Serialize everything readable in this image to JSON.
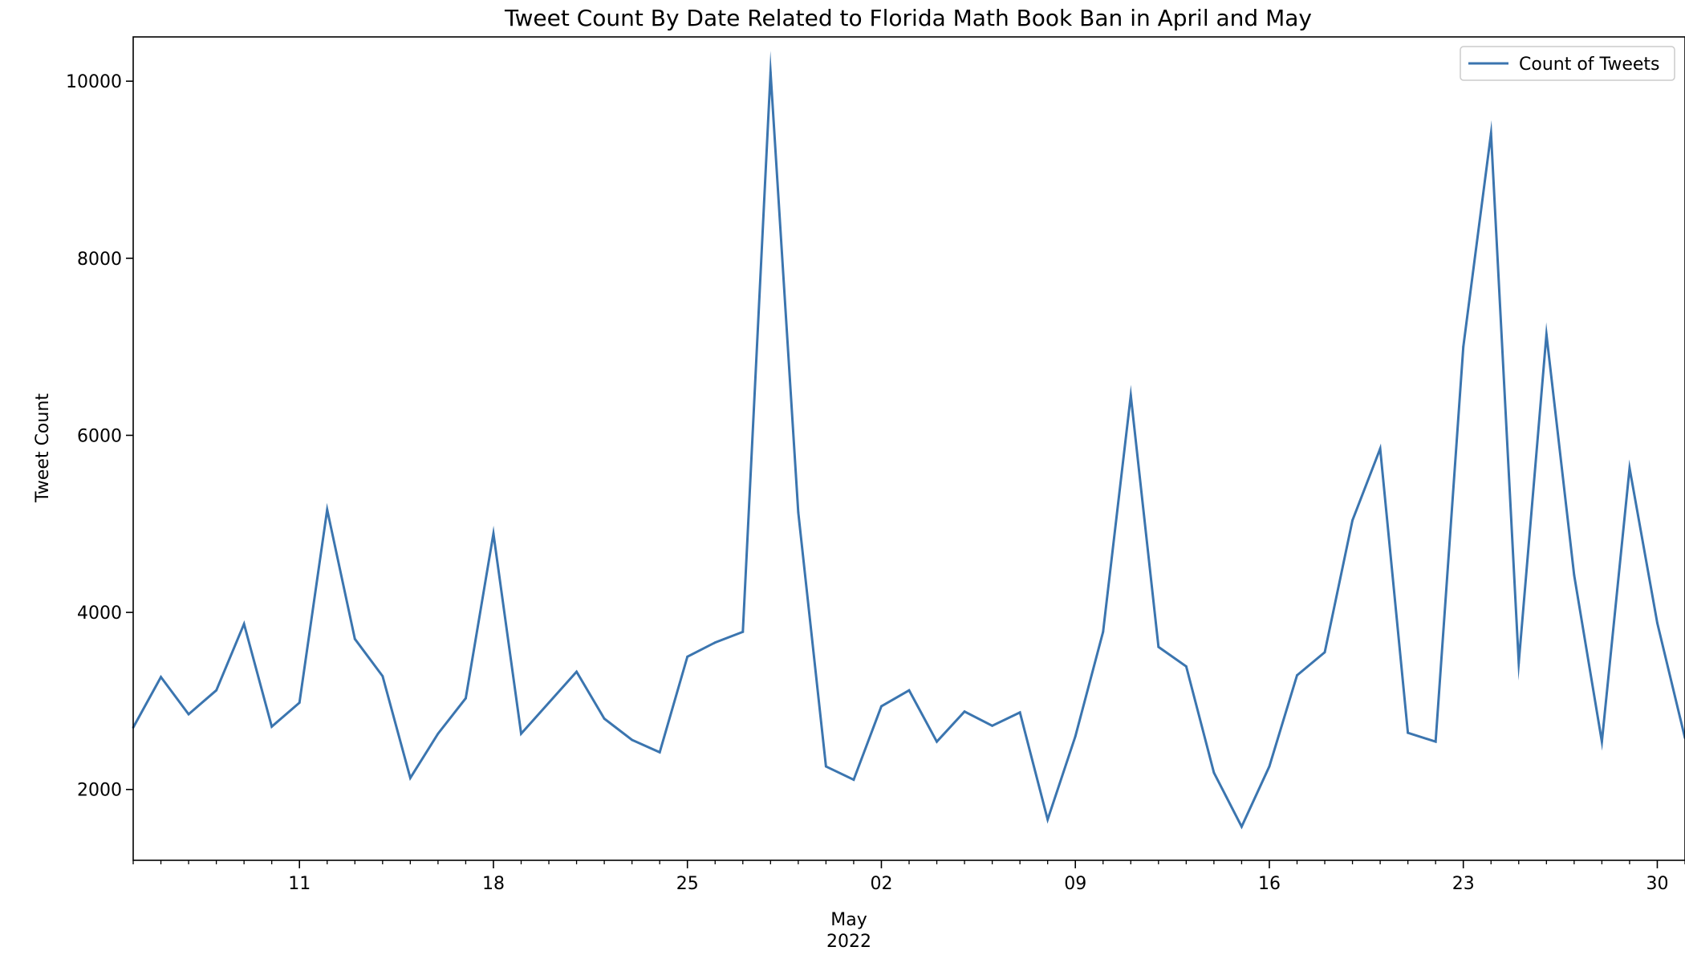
{
  "chart_data": {
    "type": "line",
    "title": "Tweet Count By Date Related to Florida Math Book Ban in April and May",
    "xlabel": "",
    "ylabel": "Tweet Count",
    "ylim": [
      1200,
      10500
    ],
    "grid": false,
    "legend_position": "top-right",
    "x_start": "2022-04-05",
    "x_end": "2022-05-31",
    "y_ticks": [
      2000,
      4000,
      6000,
      8000,
      10000
    ],
    "x_ticks": [
      {
        "date": "2022-04-11",
        "label": "11"
      },
      {
        "date": "2022-04-18",
        "label": "18"
      },
      {
        "date": "2022-04-25",
        "label": "25"
      },
      {
        "date": "2022-05-02",
        "label": "02"
      },
      {
        "date": "2022-05-09",
        "label": "09"
      },
      {
        "date": "2022-05-16",
        "label": "16"
      },
      {
        "date": "2022-05-23",
        "label": "23"
      },
      {
        "date": "2022-05-30",
        "label": "30"
      }
    ],
    "month_label": "May",
    "year_label": "2022",
    "series": [
      {
        "name": "Count of Tweets",
        "color": "#3b75af",
        "x": [
          "2022-04-05",
          "2022-04-06",
          "2022-04-07",
          "2022-04-08",
          "2022-04-09",
          "2022-04-10",
          "2022-04-11",
          "2022-04-12",
          "2022-04-13",
          "2022-04-14",
          "2022-04-15",
          "2022-04-16",
          "2022-04-17",
          "2022-04-18",
          "2022-04-19",
          "2022-04-20",
          "2022-04-21",
          "2022-04-22",
          "2022-04-23",
          "2022-04-24",
          "2022-04-25",
          "2022-04-26",
          "2022-04-27",
          "2022-04-28",
          "2022-04-29",
          "2022-04-30",
          "2022-05-01",
          "2022-05-02",
          "2022-05-03",
          "2022-05-04",
          "2022-05-05",
          "2022-05-06",
          "2022-05-07",
          "2022-05-08",
          "2022-05-09",
          "2022-05-10",
          "2022-05-11",
          "2022-05-12",
          "2022-05-13",
          "2022-05-14",
          "2022-05-15",
          "2022-05-16",
          "2022-05-17",
          "2022-05-18",
          "2022-05-19",
          "2022-05-20",
          "2022-05-21",
          "2022-05-22",
          "2022-05-23",
          "2022-05-24",
          "2022-05-25",
          "2022-05-26",
          "2022-05-27",
          "2022-05-28",
          "2022-05-29",
          "2022-05-30",
          "2022-05-31"
        ],
        "values": [
          2700,
          3270,
          2850,
          3120,
          3870,
          2710,
          2980,
          5160,
          3700,
          3280,
          2130,
          2630,
          3030,
          4890,
          2630,
          2980,
          3330,
          2800,
          2560,
          2420,
          3500,
          3660,
          3780,
          10100,
          5130,
          2260,
          2110,
          2940,
          3120,
          2540,
          2880,
          2720,
          2870,
          1660,
          2600,
          3780,
          6450,
          3610,
          3390,
          2190,
          1580,
          2260,
          3290,
          3550,
          5040,
          5850,
          2640,
          2540,
          7000,
          9410,
          3430,
          7140,
          4420,
          2540,
          5630,
          3880,
          2580
        ]
      }
    ]
  }
}
